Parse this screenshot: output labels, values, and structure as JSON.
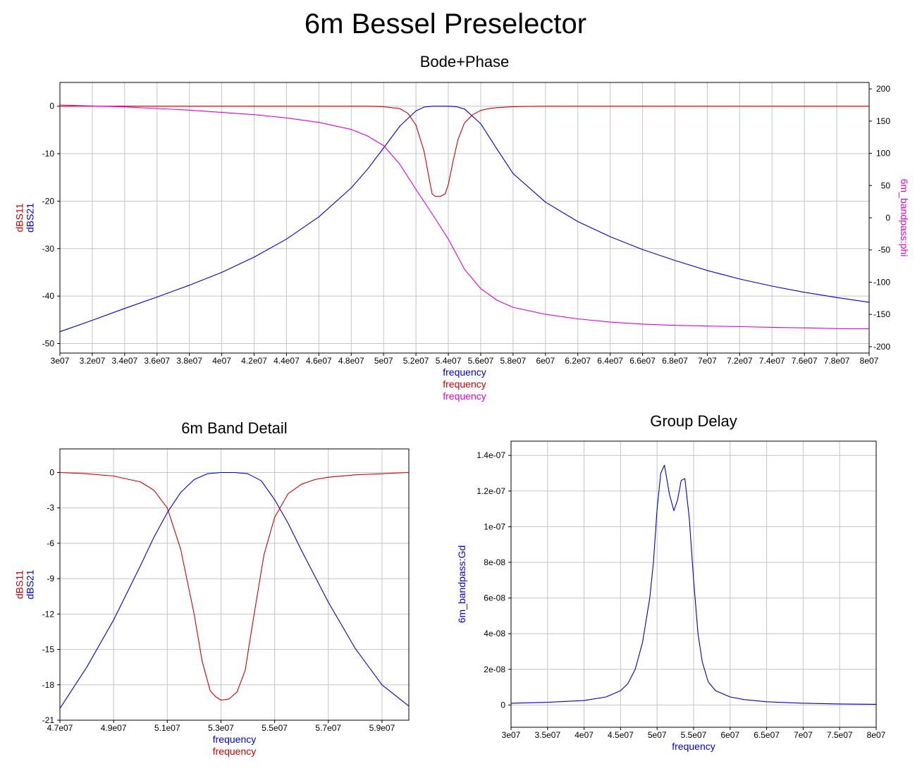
{
  "title": "6m Bessel Preselector",
  "colors": {
    "s11": "#cc0000",
    "s21": "#0000cc",
    "phase": "#e000e0"
  },
  "chart_data": [
    {
      "type": "line",
      "title": "Bode+Phase",
      "xlim": [
        30000000,
        80000000
      ],
      "xticks": [
        "3e07",
        "3.2e07",
        "3.4e07",
        "3.6e07",
        "3.8e07",
        "4e07",
        "4.2e07",
        "4.4e07",
        "4.6e07",
        "4.8e07",
        "5e07",
        "5.2e07",
        "5.4e07",
        "5.6e07",
        "5.8e07",
        "6e07",
        "6.2e07",
        "6.4e07",
        "6.6e07",
        "6.8e07",
        "7e07",
        "7.2e07",
        "7.4e07",
        "7.6e07",
        "7.8e07",
        "8e07"
      ],
      "ylim": [
        -52,
        5
      ],
      "yticks": [
        "0",
        "-10",
        "-20",
        "-30",
        "-40",
        "-50"
      ],
      "y2lim": [
        -210,
        210
      ],
      "y2ticks": [
        "200",
        "150",
        "100",
        "50",
        "0",
        "-50",
        "-100",
        "-150",
        "-200"
      ],
      "ylabels": [
        {
          "text": "dBS11",
          "color": "#cc0000"
        },
        {
          "text": "dBS21",
          "color": "#0000cc"
        }
      ],
      "y2label": {
        "text": "6m_bandpass:phi",
        "color": "#e000e0"
      },
      "xlabels": [
        {
          "text": "frequency",
          "color": "#0000cc"
        },
        {
          "text": "frequency",
          "color": "#cc0000"
        },
        {
          "text": "frequency",
          "color": "#e000e0"
        }
      ],
      "series": [
        {
          "name": "dBS21",
          "color": "#0000cc",
          "axis": "left",
          "x": [
            30000000,
            32000000,
            34000000,
            36000000,
            38000000,
            40000000,
            42000000,
            44000000,
            46000000,
            48000000,
            49000000,
            50000000,
            51000000,
            52000000,
            52500000,
            53000000,
            53500000,
            54000000,
            54500000,
            55000000,
            56000000,
            57000000,
            58000000,
            60000000,
            62000000,
            64000000,
            66000000,
            68000000,
            70000000,
            72000000,
            74000000,
            76000000,
            78000000,
            80000000
          ],
          "y": [
            -47.5,
            -45.1,
            -42.6,
            -40.2,
            -37.7,
            -35,
            -31.8,
            -28,
            -23.3,
            -17.2,
            -13.3,
            -8.8,
            -4.2,
            -1,
            -0.2,
            0,
            0,
            0,
            -0.1,
            -0.6,
            -3.7,
            -9,
            -14.2,
            -20.2,
            -24.3,
            -27.5,
            -30.2,
            -32.5,
            -34.6,
            -36.4,
            -37.9,
            -39.2,
            -40.3,
            -41.3
          ]
        },
        {
          "name": "dBS11",
          "color": "#cc0000",
          "axis": "left",
          "x": [
            30000000,
            49000000,
            50000000,
            51000000,
            51500000,
            52000000,
            52500000,
            52800000,
            53000000,
            53200000,
            53500000,
            53800000,
            54000000,
            54300000,
            54600000,
            55000000,
            55500000,
            56000000,
            56500000,
            57000000,
            58000000,
            59000000,
            60000000,
            80000000
          ],
          "y": [
            0,
            0,
            -0.1,
            -0.5,
            -1.5,
            -4,
            -9.5,
            -15,
            -18.5,
            -19,
            -19,
            -18.5,
            -16.5,
            -11.5,
            -7,
            -3.5,
            -1.8,
            -0.9,
            -0.5,
            -0.3,
            -0.1,
            -0.05,
            0,
            0
          ]
        },
        {
          "name": "6m_bandpass:phi",
          "color": "#e000e0",
          "axis": "right",
          "x": [
            30000000,
            34000000,
            38000000,
            42000000,
            44000000,
            46000000,
            48000000,
            49000000,
            50000000,
            51000000,
            52000000,
            53000000,
            54000000,
            55000000,
            56000000,
            57000000,
            58000000,
            60000000,
            62000000,
            64000000,
            66000000,
            68000000,
            70000000,
            72000000,
            74000000,
            76000000,
            78000000,
            80000000
          ],
          "y": [
            175,
            172,
            167,
            160,
            155,
            148,
            137,
            127,
            112,
            83,
            44,
            6,
            -33,
            -80,
            -110,
            -128,
            -139,
            -150,
            -157,
            -162,
            -165,
            -167,
            -168,
            -169,
            -170,
            -171,
            -172,
            -172
          ]
        }
      ]
    },
    {
      "type": "line",
      "title": "6m Band Detail",
      "xlim": [
        47000000,
        60000000
      ],
      "xticks": [
        "4.7e07",
        "4.9e07",
        "5.1e07",
        "5.3e07",
        "5.5e07",
        "5.7e07",
        "5.9e07"
      ],
      "ylim": [
        -21,
        2
      ],
      "yticks": [
        "0",
        "-3",
        "-6",
        "-9",
        "-12",
        "-15",
        "-18",
        "-21"
      ],
      "ylabels": [
        {
          "text": "dBS11",
          "color": "#cc0000"
        },
        {
          "text": "dBS21",
          "color": "#0000cc"
        }
      ],
      "xlabels": [
        {
          "text": "frequency",
          "color": "#0000cc"
        },
        {
          "text": "frequency",
          "color": "#cc0000"
        }
      ],
      "series": [
        {
          "name": "dBS21",
          "color": "#0000cc",
          "axis": "left",
          "x": [
            47000000,
            48000000,
            49000000,
            50000000,
            50500000,
            51000000,
            51500000,
            52000000,
            52500000,
            53000000,
            53500000,
            54000000,
            54500000,
            55000000,
            55500000,
            56000000,
            57000000,
            58000000,
            59000000,
            60000000
          ],
          "y": [
            -20,
            -16.5,
            -12.5,
            -7.9,
            -5.5,
            -3.4,
            -1.7,
            -0.6,
            -0.1,
            0,
            0,
            -0.1,
            -0.7,
            -2.3,
            -4.3,
            -6.6,
            -11,
            -14.9,
            -18,
            -19.8
          ]
        },
        {
          "name": "dBS11",
          "color": "#cc0000",
          "axis": "left",
          "x": [
            47000000,
            48000000,
            49000000,
            50000000,
            50500000,
            51000000,
            51500000,
            52000000,
            52300000,
            52600000,
            52800000,
            53000000,
            53300000,
            53600000,
            53900000,
            54200000,
            54600000,
            55000000,
            55500000,
            56000000,
            56500000,
            57000000,
            58000000,
            59000000,
            60000000
          ],
          "y": [
            0,
            -0.1,
            -0.3,
            -0.8,
            -1.5,
            -3,
            -6.5,
            -12,
            -16,
            -18.5,
            -19,
            -19.3,
            -19.2,
            -18.6,
            -16.8,
            -12.5,
            -7,
            -3.8,
            -1.8,
            -1,
            -0.6,
            -0.4,
            -0.2,
            -0.1,
            0
          ]
        }
      ]
    },
    {
      "type": "line",
      "title": "Group Delay",
      "xlim": [
        30000000,
        80000000
      ],
      "xticks": [
        "3e07",
        "3.5e07",
        "4e07",
        "4.5e07",
        "5e07",
        "5.5e07",
        "6e07",
        "6.5e07",
        "7e07",
        "7.5e07",
        "8e07"
      ],
      "ylim": [
        -1.25e-08,
        1.48e-07
      ],
      "yticks": [
        "1.4e-07",
        "1.2e-07",
        "1e-07",
        "8e-08",
        "6e-08",
        "4e-08",
        "2e-08",
        "0"
      ],
      "ylabels": [
        {
          "text": "6m_bandpass:Gd",
          "color": "#0000cc"
        }
      ],
      "xlabels": [
        {
          "text": "frequency",
          "color": "#0000cc"
        }
      ],
      "series": [
        {
          "name": "6m_bandpass:Gd",
          "color": "#0000cc",
          "axis": "left",
          "x": [
            30000000,
            35000000,
            40000000,
            43000000,
            45000000,
            46000000,
            47000000,
            48000000,
            49000000,
            49500000,
            50000000,
            50500000,
            51000000,
            51700000,
            52300000,
            52800000,
            53300000,
            53800000,
            54400000,
            55000000,
            55600000,
            56200000,
            57000000,
            58000000,
            60000000,
            62000000,
            65000000,
            70000000,
            75000000,
            80000000
          ],
          "y": [
            1e-09,
            1.5e-09,
            2.5e-09,
            4.5e-09,
            8e-09,
            1.2e-08,
            2e-08,
            3.5e-08,
            6e-08,
            8e-08,
            1.1e-07,
            1.3e-07,
            1.345e-07,
            1.18e-07,
            1.09e-07,
            1.15e-07,
            1.26e-07,
            1.27e-07,
            1.05e-07,
            7e-08,
            4e-08,
            2.4e-08,
            1.3e-08,
            8e-09,
            4.5e-09,
            3e-09,
            1.8e-09,
            1e-09,
            6e-10,
            4e-10
          ]
        }
      ]
    }
  ]
}
